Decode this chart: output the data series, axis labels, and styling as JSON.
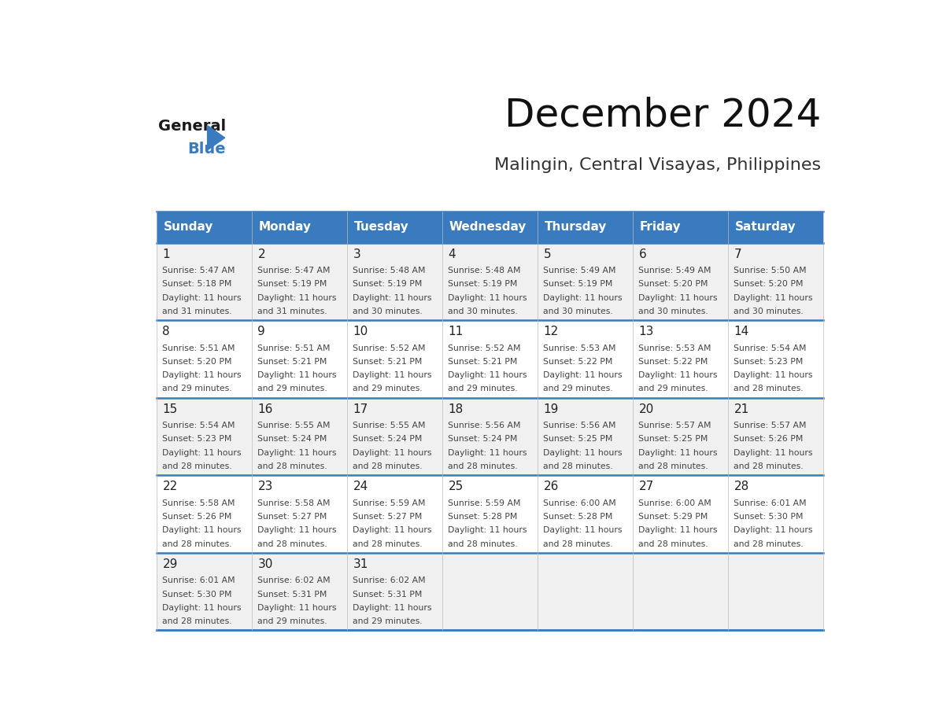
{
  "title": "December 2024",
  "subtitle": "Malingin, Central Visayas, Philippines",
  "header_color": "#3a7bbf",
  "header_text_color": "#ffffff",
  "cell_bg_odd": "#f0f0f0",
  "cell_bg_even": "#ffffff",
  "day_names": [
    "Sunday",
    "Monday",
    "Tuesday",
    "Wednesday",
    "Thursday",
    "Friday",
    "Saturday"
  ],
  "calendar": [
    [
      {
        "day": 1,
        "sunrise": "5:47 AM",
        "sunset": "5:18 PM",
        "daylight": "11 hours and 31 minutes"
      },
      {
        "day": 2,
        "sunrise": "5:47 AM",
        "sunset": "5:19 PM",
        "daylight": "11 hours and 31 minutes"
      },
      {
        "day": 3,
        "sunrise": "5:48 AM",
        "sunset": "5:19 PM",
        "daylight": "11 hours and 30 minutes"
      },
      {
        "day": 4,
        "sunrise": "5:48 AM",
        "sunset": "5:19 PM",
        "daylight": "11 hours and 30 minutes"
      },
      {
        "day": 5,
        "sunrise": "5:49 AM",
        "sunset": "5:19 PM",
        "daylight": "11 hours and 30 minutes"
      },
      {
        "day": 6,
        "sunrise": "5:49 AM",
        "sunset": "5:20 PM",
        "daylight": "11 hours and 30 minutes"
      },
      {
        "day": 7,
        "sunrise": "5:50 AM",
        "sunset": "5:20 PM",
        "daylight": "11 hours and 30 minutes"
      }
    ],
    [
      {
        "day": 8,
        "sunrise": "5:51 AM",
        "sunset": "5:20 PM",
        "daylight": "11 hours and 29 minutes"
      },
      {
        "day": 9,
        "sunrise": "5:51 AM",
        "sunset": "5:21 PM",
        "daylight": "11 hours and 29 minutes"
      },
      {
        "day": 10,
        "sunrise": "5:52 AM",
        "sunset": "5:21 PM",
        "daylight": "11 hours and 29 minutes"
      },
      {
        "day": 11,
        "sunrise": "5:52 AM",
        "sunset": "5:21 PM",
        "daylight": "11 hours and 29 minutes"
      },
      {
        "day": 12,
        "sunrise": "5:53 AM",
        "sunset": "5:22 PM",
        "daylight": "11 hours and 29 minutes"
      },
      {
        "day": 13,
        "sunrise": "5:53 AM",
        "sunset": "5:22 PM",
        "daylight": "11 hours and 29 minutes"
      },
      {
        "day": 14,
        "sunrise": "5:54 AM",
        "sunset": "5:23 PM",
        "daylight": "11 hours and 28 minutes"
      }
    ],
    [
      {
        "day": 15,
        "sunrise": "5:54 AM",
        "sunset": "5:23 PM",
        "daylight": "11 hours and 28 minutes"
      },
      {
        "day": 16,
        "sunrise": "5:55 AM",
        "sunset": "5:24 PM",
        "daylight": "11 hours and 28 minutes"
      },
      {
        "day": 17,
        "sunrise": "5:55 AM",
        "sunset": "5:24 PM",
        "daylight": "11 hours and 28 minutes"
      },
      {
        "day": 18,
        "sunrise": "5:56 AM",
        "sunset": "5:24 PM",
        "daylight": "11 hours and 28 minutes"
      },
      {
        "day": 19,
        "sunrise": "5:56 AM",
        "sunset": "5:25 PM",
        "daylight": "11 hours and 28 minutes"
      },
      {
        "day": 20,
        "sunrise": "5:57 AM",
        "sunset": "5:25 PM",
        "daylight": "11 hours and 28 minutes"
      },
      {
        "day": 21,
        "sunrise": "5:57 AM",
        "sunset": "5:26 PM",
        "daylight": "11 hours and 28 minutes"
      }
    ],
    [
      {
        "day": 22,
        "sunrise": "5:58 AM",
        "sunset": "5:26 PM",
        "daylight": "11 hours and 28 minutes"
      },
      {
        "day": 23,
        "sunrise": "5:58 AM",
        "sunset": "5:27 PM",
        "daylight": "11 hours and 28 minutes"
      },
      {
        "day": 24,
        "sunrise": "5:59 AM",
        "sunset": "5:27 PM",
        "daylight": "11 hours and 28 minutes"
      },
      {
        "day": 25,
        "sunrise": "5:59 AM",
        "sunset": "5:28 PM",
        "daylight": "11 hours and 28 minutes"
      },
      {
        "day": 26,
        "sunrise": "6:00 AM",
        "sunset": "5:28 PM",
        "daylight": "11 hours and 28 minutes"
      },
      {
        "day": 27,
        "sunrise": "6:00 AM",
        "sunset": "5:29 PM",
        "daylight": "11 hours and 28 minutes"
      },
      {
        "day": 28,
        "sunrise": "6:01 AM",
        "sunset": "5:30 PM",
        "daylight": "11 hours and 28 minutes"
      }
    ],
    [
      {
        "day": 29,
        "sunrise": "6:01 AM",
        "sunset": "5:30 PM",
        "daylight": "11 hours and 28 minutes"
      },
      {
        "day": 30,
        "sunrise": "6:02 AM",
        "sunset": "5:31 PM",
        "daylight": "11 hours and 29 minutes"
      },
      {
        "day": 31,
        "sunrise": "6:02 AM",
        "sunset": "5:31 PM",
        "daylight": "11 hours and 29 minutes"
      },
      null,
      null,
      null,
      null
    ]
  ],
  "logo_text_general": "General",
  "logo_text_blue": "Blue",
  "line_color_blue": "#3a7bbf",
  "line_color_gray": "#bbbbbb"
}
